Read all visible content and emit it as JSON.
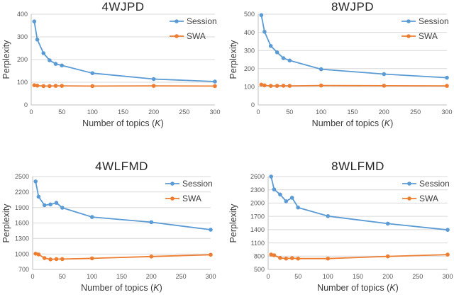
{
  "colors": {
    "session": "#5B9BD5",
    "swa": "#ED7D31",
    "gridline": "#D9D9D9",
    "axis": "#BFBFBF",
    "tick_text": "#595959",
    "title_text": "#262626",
    "legend_text": "#404040"
  },
  "chart_data": [
    {
      "type": "line",
      "title": "4WJPD",
      "ylabel": "Perplexity",
      "xlabel_parts": [
        "Number of topics (",
        "K",
        ")"
      ],
      "x": [
        5,
        10,
        20,
        30,
        40,
        50,
        100,
        200,
        300
      ],
      "series": [
        {
          "name": "Session",
          "color": "#5B9BD5",
          "values": [
            368,
            288,
            228,
            197,
            181,
            174,
            140,
            114,
            103
          ]
        },
        {
          "name": "SWA",
          "color": "#ED7D31",
          "values": [
            87,
            85,
            83,
            83,
            84,
            84,
            83,
            84,
            83
          ]
        }
      ],
      "xlim": [
        0,
        300
      ],
      "ylim": [
        0,
        400
      ],
      "xticks": [
        0,
        50,
        100,
        150,
        200,
        250,
        300
      ],
      "yticks": [
        0,
        100,
        200,
        300,
        400
      ],
      "grid": true,
      "legend_position": "top-right"
    },
    {
      "type": "line",
      "title": "8WJPD",
      "ylabel": "Perplexity",
      "xlabel_parts": [
        "Number of topics (",
        "K",
        ")"
      ],
      "x": [
        5,
        10,
        20,
        30,
        40,
        50,
        100,
        200,
        300
      ],
      "series": [
        {
          "name": "Session",
          "color": "#5B9BD5",
          "values": [
            495,
            403,
            325,
            290,
            258,
            245,
            197,
            170,
            150
          ]
        },
        {
          "name": "SWA",
          "color": "#ED7D31",
          "values": [
            112,
            108,
            105,
            105,
            106,
            105,
            107,
            106,
            105
          ]
        }
      ],
      "xlim": [
        0,
        300
      ],
      "ylim": [
        0,
        500
      ],
      "xticks": [
        0,
        50,
        100,
        150,
        200,
        250,
        300
      ],
      "yticks": [
        0,
        100,
        200,
        300,
        400,
        500
      ],
      "grid": true,
      "legend_position": "top-right"
    },
    {
      "type": "line",
      "title": "4WLFMD",
      "ylabel": "Perplexity",
      "xlabel_parts": [
        "Number of topics (",
        "K",
        ")"
      ],
      "x": [
        5,
        10,
        20,
        30,
        40,
        50,
        100,
        200,
        300
      ],
      "series": [
        {
          "name": "Session",
          "color": "#5B9BD5",
          "values": [
            2405,
            2110,
            1945,
            1960,
            1990,
            1895,
            1715,
            1615,
            1470
          ]
        },
        {
          "name": "SWA",
          "color": "#ED7D31",
          "values": [
            1005,
            990,
            920,
            895,
            900,
            900,
            915,
            950,
            985
          ]
        }
      ],
      "xlim": [
        0,
        300
      ],
      "ylim": [
        700,
        2500
      ],
      "xticks": [
        0,
        50,
        100,
        150,
        200,
        250,
        300
      ],
      "yticks": [
        700,
        1000,
        1300,
        1600,
        1900,
        2200,
        2500
      ],
      "grid": true,
      "legend_position": "top-right"
    },
    {
      "type": "line",
      "title": "8WLFMD",
      "ylabel": "Perplexity",
      "xlabel_parts": [
        "Number of topics (",
        "K",
        ")"
      ],
      "x": [
        5,
        10,
        20,
        30,
        40,
        50,
        100,
        200,
        300
      ],
      "series": [
        {
          "name": "Session",
          "color": "#5B9BD5",
          "values": [
            2600,
            2310,
            2195,
            2040,
            2120,
            1900,
            1705,
            1535,
            1395
          ]
        },
        {
          "name": "SWA",
          "color": "#ED7D31",
          "values": [
            835,
            820,
            760,
            745,
            755,
            745,
            745,
            795,
            835
          ]
        }
      ],
      "xlim": [
        0,
        300
      ],
      "ylim": [
        500,
        2600
      ],
      "xticks": [
        0,
        50,
        100,
        150,
        200,
        250,
        300
      ],
      "yticks": [
        500,
        800,
        1100,
        1400,
        1700,
        2000,
        2300,
        2600
      ],
      "grid": true,
      "legend_position": "top-right"
    }
  ]
}
